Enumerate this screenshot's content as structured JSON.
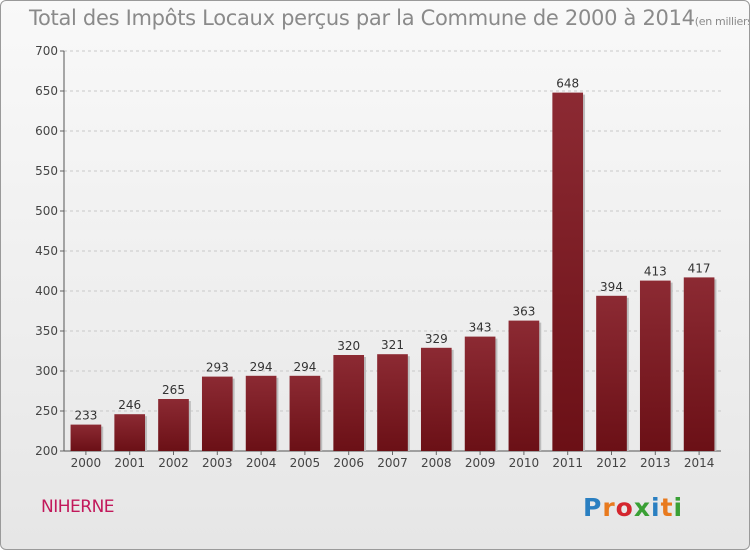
{
  "chart_data": {
    "type": "bar",
    "title": "Total des Impôts Locaux perçus par la Commune de 2000 à 2014",
    "unit_note": "(en milliers d'€)",
    "categories": [
      "2000",
      "2001",
      "2002",
      "2003",
      "2004",
      "2005",
      "2006",
      "2007",
      "2008",
      "2009",
      "2010",
      "2011",
      "2012",
      "2013",
      "2014"
    ],
    "values": [
      233,
      246,
      265,
      293,
      294,
      294,
      320,
      321,
      329,
      343,
      363,
      648,
      394,
      413,
      417
    ],
    "ylim": [
      200,
      700
    ],
    "yticks": [
      200,
      250,
      300,
      350,
      400,
      450,
      500,
      550,
      600,
      650,
      700
    ],
    "xlabel": "",
    "ylabel": "",
    "grid": true,
    "bar_color": "#6b1016",
    "bar_highlight": "#8c2a33"
  },
  "commune_name": "NIHERNE",
  "logo": {
    "text": "Proxiti",
    "colors": [
      "#2a7fc1",
      "#e87a1e",
      "#d4262e",
      "#3aa035",
      "#2a7fc1",
      "#e87a1e",
      "#3aa035"
    ]
  }
}
